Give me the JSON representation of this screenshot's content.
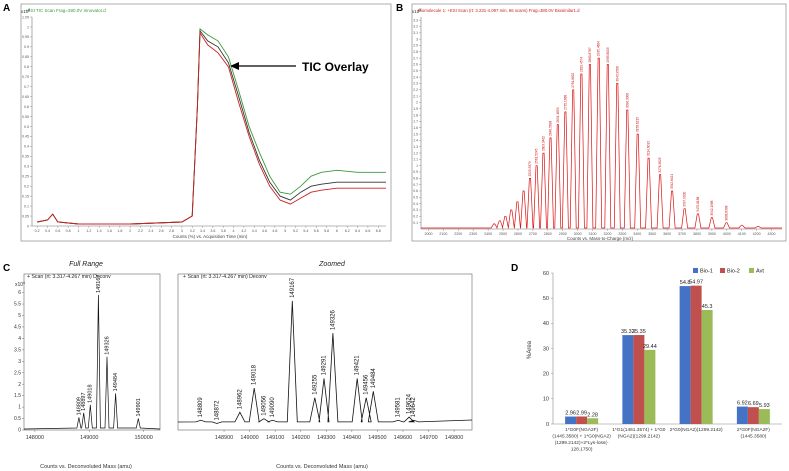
{
  "panels": {
    "A": {
      "letter": "A",
      "header": "+ESI TIC Scan Frag=380.0V Innovator.d",
      "ymult": "x10",
      "yexp": "3",
      "xlabel": "Counts (%) vs. Acquisition Time (min)",
      "annotation": "TIC Overlay"
    },
    "B": {
      "letter": "B",
      "header": "Biomolecule 1: +ESI Scan (rt: 3.231-4.097 min, 66 scans) Frag=380.0V Biosimilar1.d",
      "ymult": "x10",
      "yexp": "5",
      "xlabel": "Counts vs. Mass-to-Charge (m/z)"
    },
    "C": {
      "letter": "C",
      "full_title": "Full Range",
      "zoom_title": "Zoomed",
      "scan_label": "+ Scan (rt: 3.317-4.267 min)  Deconv",
      "ymult": "x10",
      "yexp": "6",
      "xlabel": "Counts vs. Deconvoluted Mass (amu)"
    },
    "D": {
      "letter": "D"
    }
  },
  "chart_data": [
    {
      "type": "line",
      "ylim": [
        0,
        1.05
      ],
      "yticks": [
        "0",
        "0.05",
        "0.1",
        "0.15",
        "0.2",
        "0.25",
        "0.3",
        "0.35",
        "0.4",
        "0.45",
        "0.5",
        "0.55",
        "0.6",
        "0.65",
        "0.7",
        "0.75",
        "0.8",
        "0.85",
        "0.9",
        "0.95",
        "1",
        "1.05"
      ],
      "xticks": [
        "0.2",
        "0.4",
        "0.6",
        "0.8",
        "1",
        "1.2",
        "1.4",
        "1.6",
        "1.8",
        "2",
        "2.2",
        "2.4",
        "2.6",
        "2.8",
        "3",
        "3.2",
        "3.4",
        "3.6",
        "3.8",
        "4",
        "4.2",
        "4.4",
        "4.6",
        "4.8",
        "5",
        "5.2",
        "5.4",
        "5.6",
        "5.8",
        "6",
        "6.2",
        "6.4",
        "6.6",
        "6.8"
      ],
      "series": [
        {
          "color": "#3a9a3a",
          "x": [
            0.2,
            0.4,
            0.5,
            0.6,
            1,
            2,
            3.0,
            3.2,
            3.3,
            3.35,
            3.5,
            3.7,
            3.9,
            4.1,
            4.3,
            4.5,
            4.7,
            4.9,
            5.1,
            5.3,
            5.5,
            5.7,
            6.0,
            6.4,
            6.8,
            6.95
          ],
          "y": [
            0.02,
            0.03,
            0.06,
            0.02,
            0.01,
            0.01,
            0.02,
            0.05,
            0.6,
            0.99,
            0.96,
            0.93,
            0.85,
            0.68,
            0.5,
            0.37,
            0.25,
            0.17,
            0.16,
            0.2,
            0.25,
            0.27,
            0.28,
            0.27,
            0.27,
            0.27
          ]
        },
        {
          "color": "#333333",
          "x": [
            0.2,
            0.4,
            0.5,
            0.6,
            1,
            2,
            3.0,
            3.2,
            3.3,
            3.35,
            3.5,
            3.7,
            3.9,
            4.1,
            4.3,
            4.5,
            4.7,
            4.9,
            5.1,
            5.3,
            5.5,
            5.7,
            6.0,
            6.4,
            6.8,
            6.95
          ],
          "y": [
            0.02,
            0.03,
            0.06,
            0.02,
            0.01,
            0.01,
            0.02,
            0.05,
            0.6,
            0.98,
            0.93,
            0.9,
            0.82,
            0.65,
            0.47,
            0.33,
            0.22,
            0.15,
            0.13,
            0.17,
            0.2,
            0.21,
            0.22,
            0.22,
            0.22,
            0.22
          ]
        },
        {
          "color": "#cc2222",
          "x": [
            0.2,
            0.4,
            0.5,
            0.6,
            1,
            2,
            3.0,
            3.2,
            3.3,
            3.35,
            3.5,
            3.7,
            3.9,
            4.1,
            4.3,
            4.5,
            4.7,
            4.9,
            5.1,
            5.3,
            5.5,
            5.7,
            6.0,
            6.4,
            6.8,
            6.95
          ],
          "y": [
            0.02,
            0.03,
            0.06,
            0.02,
            0.01,
            0.01,
            0.02,
            0.05,
            0.6,
            0.97,
            0.91,
            0.87,
            0.8,
            0.62,
            0.45,
            0.31,
            0.2,
            0.13,
            0.11,
            0.14,
            0.17,
            0.18,
            0.19,
            0.19,
            0.19,
            0.19
          ]
        }
      ]
    },
    {
      "type": "bar",
      "ylim": [
        0,
        3.35
      ],
      "yticks": [
        "0.1",
        "0.2",
        "0.3",
        "0.4",
        "0.5",
        "0.6",
        "0.7",
        "0.8",
        "0.9",
        "1",
        "1.1",
        "1.2",
        "1.3",
        "1.4",
        "1.5",
        "1.6",
        "1.7",
        "1.8",
        "1.9",
        "2",
        "2.1",
        "2.2",
        "2.3",
        "2.4",
        "2.5",
        "2.6",
        "2.7",
        "2.8",
        "2.9",
        "3",
        "3.1",
        "3.2",
        "3.3"
      ],
      "xticks": [
        "2000",
        "2100",
        "2200",
        "2300",
        "2400",
        "2500",
        "2600",
        "2700",
        "2800",
        "2900",
        "3000",
        "3100",
        "3200",
        "3300",
        "3400",
        "3500",
        "3600",
        "3700",
        "3800",
        "3900",
        "4000",
        "4100",
        "4200",
        "4300"
      ],
      "xlim": [
        1950,
        4370
      ],
      "peaks_mz": [
        2441,
        2478,
        2516,
        2555,
        2596,
        2638,
        2681,
        2725,
        2771,
        2818,
        2867,
        2918,
        2970,
        3025,
        3082,
        3141,
        3202,
        3266,
        3333,
        3403,
        3476,
        3553,
        3633,
        3717,
        3806,
        3900,
        3998,
        4101,
        4210
      ],
      "peaks_int": [
        0.08,
        0.13,
        0.2,
        0.3,
        0.43,
        0.6,
        0.8,
        1.0,
        1.2,
        1.44,
        1.65,
        1.85,
        2.2,
        2.45,
        2.6,
        2.7,
        2.6,
        2.3,
        1.88,
        1.5,
        1.12,
        0.86,
        0.6,
        0.32,
        0.24,
        0.18,
        0.1,
        0.06,
        0.04
      ],
      "labels": [
        "2520.5379",
        "2561.5245",
        "2603.3462",
        "2646.5698",
        "2691.1659",
        "2735.1668",
        "2781.8822",
        "2829.4574",
        "2880.8787",
        "2935.4604",
        "2985.8005",
        "3043.9568",
        "3096.3006",
        "3158.6215",
        "3214.6013",
        "3276.3825",
        "3342.8421",
        "3397.9000",
        "3470.8188",
        "3542.1588",
        "3608.8308"
      ]
    },
    {
      "type": "line",
      "name_ref": "full",
      "xlim": [
        148700,
        150400
      ],
      "xticks": [
        "148900",
        "149000",
        "149100",
        "149200",
        "149300",
        "149400",
        "149500",
        "149600",
        "149700",
        "149800"
      ],
      "xticks_full": [
        "148000",
        "149000",
        "150000"
      ],
      "yticks": [
        "0",
        "0.5",
        "1",
        "1.5",
        "2",
        "2.5",
        "3",
        "3.5",
        "4",
        "4.5",
        "5",
        "5.5",
        "6"
      ],
      "ylim": [
        0,
        6.2
      ],
      "full_peaks": [
        {
          "mass": "148809",
          "y": 0.55
        },
        {
          "mass": "148897",
          "y": 0.75
        },
        {
          "mass": "149018",
          "y": 1.1
        },
        {
          "mass": "149167",
          "y": 5.9
        },
        {
          "mass": "149326",
          "y": 3.2
        },
        {
          "mass": "149484",
          "y": 1.6
        },
        {
          "mass": "149901",
          "y": 0.5
        }
      ],
      "zoom_peaks": [
        {
          "mass": "148809",
          "x": 148809,
          "y": 0.3
        },
        {
          "mass": "148872",
          "x": 148872,
          "y": 0.2
        },
        {
          "mass": "148962",
          "x": 148962,
          "y": 0.55
        },
        {
          "mass": "149018",
          "x": 149018,
          "y": 1.3
        },
        {
          "mass": "149056",
          "x": 149056,
          "y": 0.35
        },
        {
          "mass": "149090",
          "x": 149090,
          "y": 0.3
        },
        {
          "mass": "149167",
          "x": 149167,
          "y": 4.0
        },
        {
          "mass": "149255",
          "x": 149255,
          "y": 1.0
        },
        {
          "mass": "149291",
          "x": 149291,
          "y": 1.6
        },
        {
          "mass": "149326",
          "x": 149326,
          "y": 3.0
        },
        {
          "mass": "149421",
          "x": 149421,
          "y": 1.6
        },
        {
          "mass": "149456",
          "x": 149456,
          "y": 1.0
        },
        {
          "mass": "149484",
          "x": 149484,
          "y": 1.2
        },
        {
          "mass": "149581",
          "x": 149581,
          "y": 0.3
        },
        {
          "mass": "149624",
          "x": 149624,
          "y": 0.4
        },
        {
          "mass": "149642",
          "x": 149642,
          "y": 0.3
        }
      ]
    },
    {
      "type": "bar",
      "ylabel": "%Area",
      "ylim": [
        0,
        60
      ],
      "yticks": [
        "0",
        "10",
        "20",
        "30",
        "40",
        "50",
        "60"
      ],
      "legend_position": "top-right",
      "categories": [
        [
          "1*G0F(NGA2F)",
          "(1445.3580) + 1*G0(NGA2)",
          "(1299.2142)+2*Lys-loss(-",
          "128.1750)"
        ],
        [
          "1*G1(1461.3574) + 1*G0",
          "(NGA2)(1299.2142)"
        ],
        [
          "2*G0(NGA2)(1299.2142)"
        ],
        [
          "2*G0F(NGA2F)",
          "(1445.3580)"
        ]
      ],
      "series": [
        {
          "name": "Bio-1",
          "color": "#4472c4",
          "values": [
            2.96,
            35.32,
            54.8,
            6.92
          ]
        },
        {
          "name": "Bio-2",
          "color": "#c0504d",
          "values": [
            2.99,
            35.35,
            54.97,
            6.69
          ]
        },
        {
          "name": "Avt",
          "color": "#9bbb59",
          "values": [
            2.28,
            29.44,
            45.3,
            5.93
          ]
        }
      ],
      "value_labels": [
        [
          "2.96",
          "2.99",
          "2.28"
        ],
        [
          "35.32",
          "35.35",
          "29.44"
        ],
        [
          "54.8",
          "54.97",
          "45.3"
        ],
        [
          "6.92",
          "6.69",
          "5.93"
        ]
      ]
    }
  ]
}
